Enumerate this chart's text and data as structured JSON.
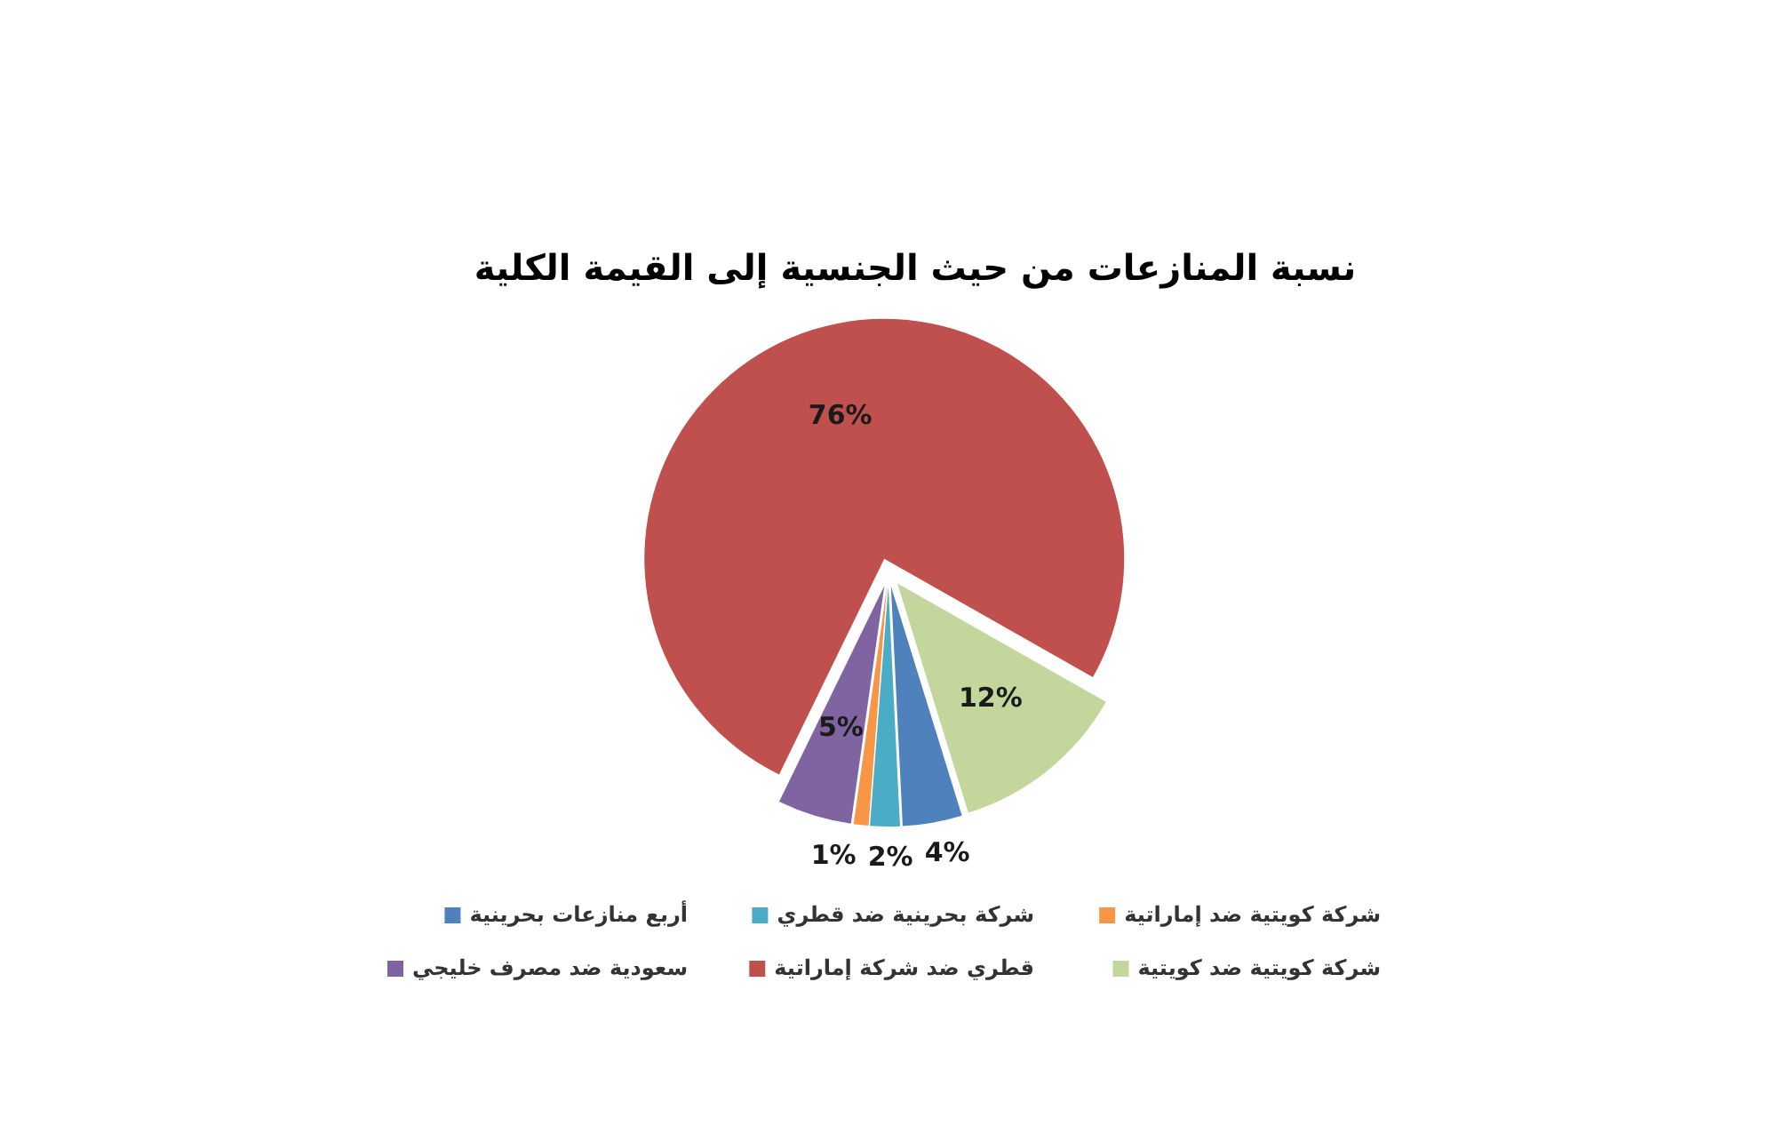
{
  "chart_data": {
    "type": "pie",
    "title": "نسبة المنازعات من حيث الجنسية إلى القيمة الكلية",
    "categories": [
      "شركة كويتية ضد إماراتية",
      "شركة بحرينية ضد قطري",
      "أربع منازعات بحرينية",
      "شركة كويتية ضد كويتية",
      "قطري ضد شركة إماراتية",
      "سعودية ضد مصرف خليجي"
    ],
    "values": [
      1,
      2,
      4,
      12,
      76,
      5
    ],
    "colors": [
      "#f79646",
      "#4bacc6",
      "#4f81bd",
      "#c3d69b",
      "#c0504d",
      "#8064a2"
    ],
    "value_labels": [
      "1%",
      "2%",
      "4%",
      "12%",
      "76%",
      "5%"
    ],
    "legend": "bottom"
  }
}
